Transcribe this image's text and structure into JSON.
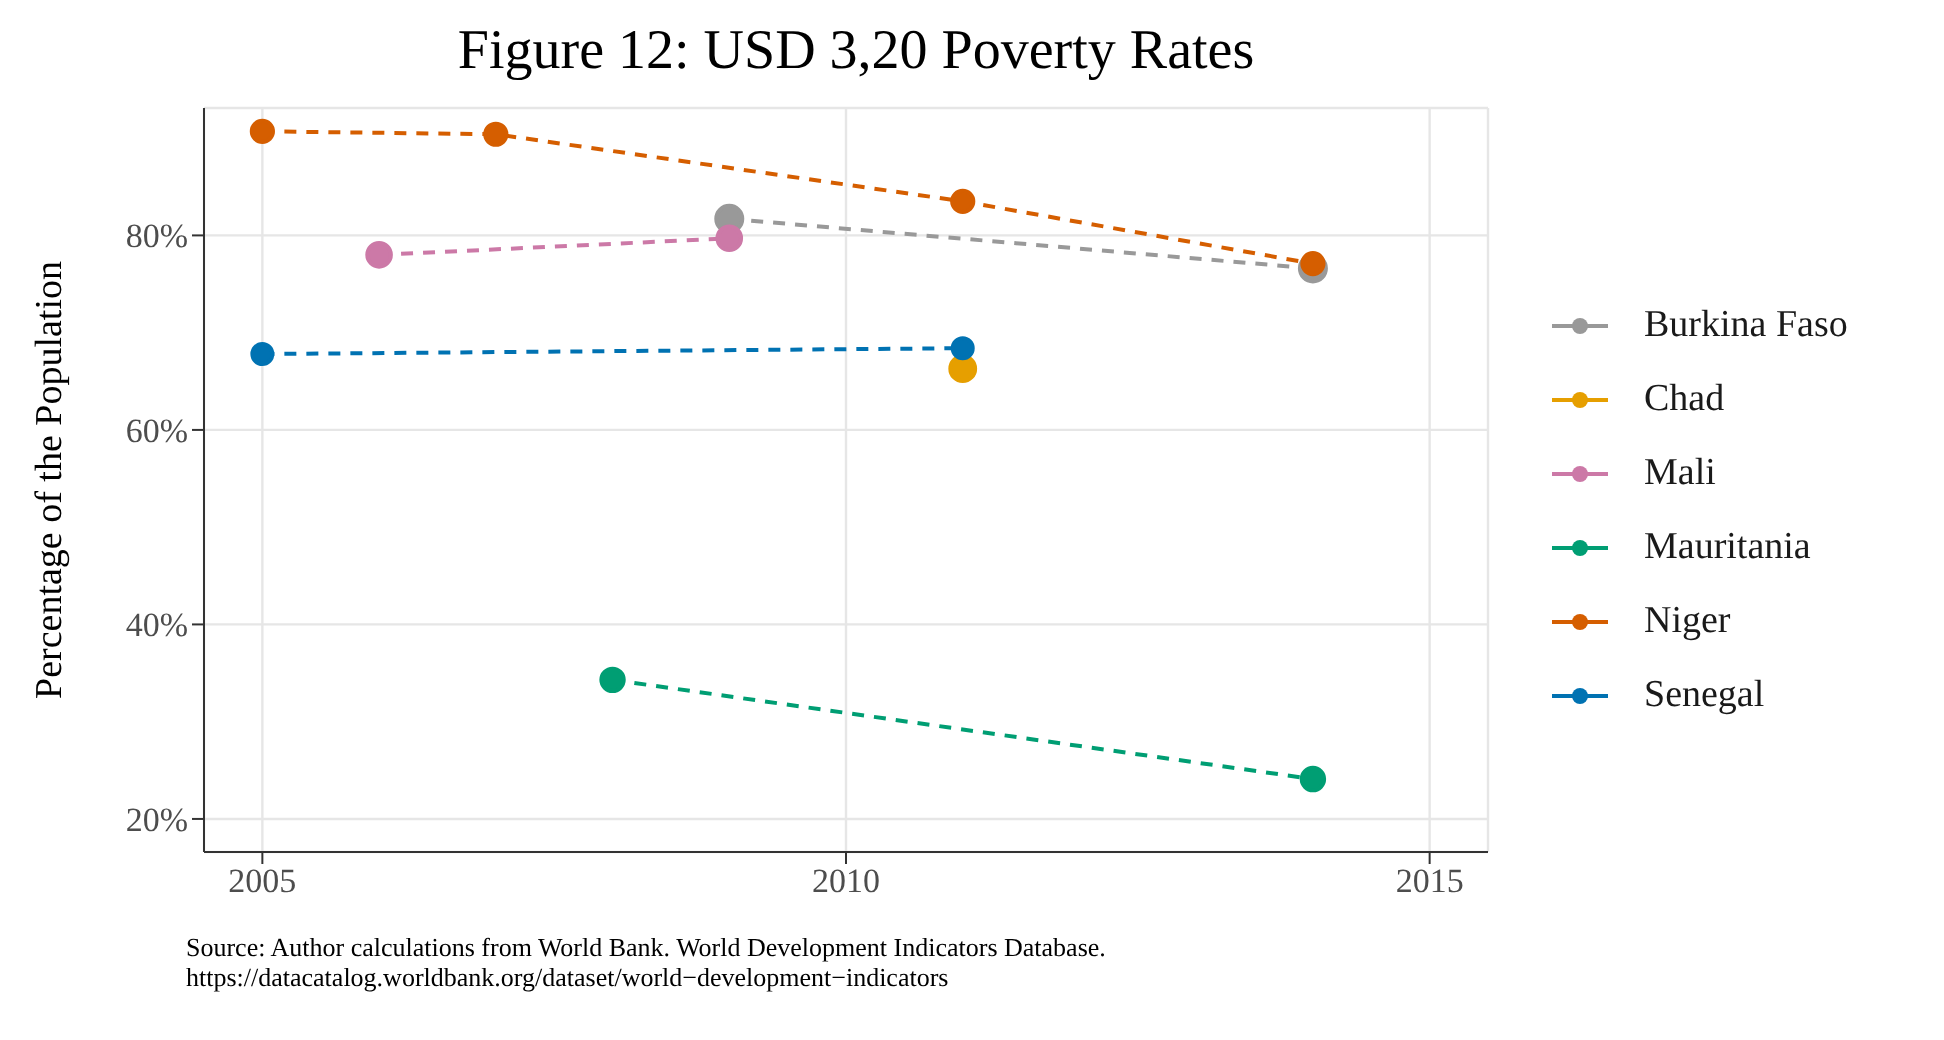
{
  "chart_data": {
    "type": "line",
    "title": "Figure 12: USD 3,20 Poverty Rates",
    "ylabel": "Percentage of the Population",
    "annotations": [
      "Source: Author calculations from World Bank. World Development Indicators Database.",
      "https://datacatalog.worldbank.org/dataset/world−development−indicators"
    ],
    "series": [
      {
        "name": "Burkina Faso",
        "color": "#999999",
        "x": [
          2009,
          2014
        ],
        "values": [
          81.7,
          76.6
        ]
      },
      {
        "name": "Chad",
        "color": "#e69f00",
        "x": [
          2011
        ],
        "values": [
          66.3
        ]
      },
      {
        "name": "Mali",
        "color": "#cc79a7",
        "x": [
          2006,
          2009
        ],
        "values": [
          78.0,
          79.7
        ]
      },
      {
        "name": "Mauritania",
        "color": "#009e73",
        "x": [
          2008,
          2014
        ],
        "values": [
          34.3,
          24.1
        ]
      },
      {
        "name": "Niger",
        "color": "#d55e00",
        "x": [
          2005,
          2007,
          2011,
          2014
        ],
        "values": [
          90.7,
          90.4,
          83.5,
          77.1
        ]
      },
      {
        "name": "Senegal",
        "color": "#0072b2",
        "x": [
          2005,
          2011
        ],
        "values": [
          67.8,
          68.4
        ]
      }
    ],
    "xlim": [
      2004.5,
      2015.5
    ],
    "xticks": [
      2005,
      2010,
      2015
    ],
    "ylim": [
      16.6,
      93.1
    ],
    "yticks": [
      {
        "value": 20,
        "label": "20%"
      },
      {
        "value": 40,
        "label": "40%"
      },
      {
        "value": 60,
        "label": "60%"
      },
      {
        "value": 80,
        "label": "80%"
      }
    ],
    "grid": true,
    "legend": "right",
    "marker": "circle",
    "line_style": "dashed"
  }
}
